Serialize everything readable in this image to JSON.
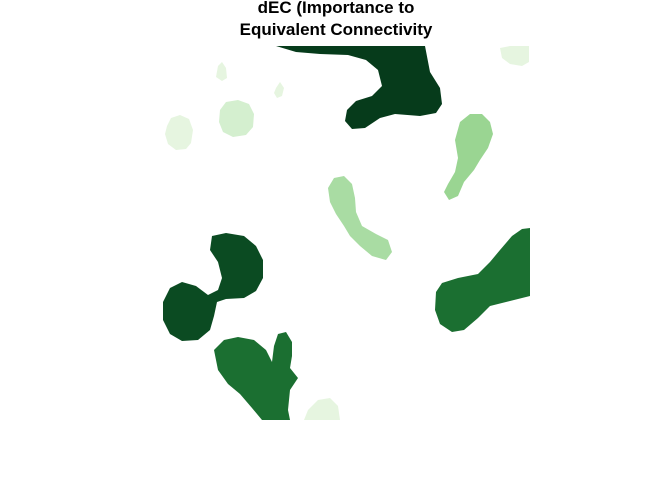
{
  "title": {
    "line1": "dEC (Importance to",
    "line2": "Equivalent Connectivity"
  },
  "palette": {
    "very_light": "#e6f5e0",
    "light": "#d4efcf",
    "light_mid": "#a9dca3",
    "mid": "#9ad592",
    "dark": "#1b6f31",
    "darker": "#0b4b22",
    "darkest": "#063b1b"
  },
  "patches": [
    {
      "id": "top-center",
      "class": "darkest"
    },
    {
      "id": "top-right-edge",
      "class": "very_light"
    },
    {
      "id": "small-fleck-left",
      "class": "very_light"
    },
    {
      "id": "small-fleck-center",
      "class": "very_light"
    },
    {
      "id": "left-oval",
      "class": "very_light"
    },
    {
      "id": "center-left-round",
      "class": "light"
    },
    {
      "id": "right-drop",
      "class": "mid"
    },
    {
      "id": "center-peanut",
      "class": "light_mid"
    },
    {
      "id": "left-hook",
      "class": "darker"
    },
    {
      "id": "right-wedge",
      "class": "dark"
    },
    {
      "id": "bottom-left",
      "class": "dark"
    },
    {
      "id": "bottom-mound",
      "class": "very_light"
    }
  ]
}
